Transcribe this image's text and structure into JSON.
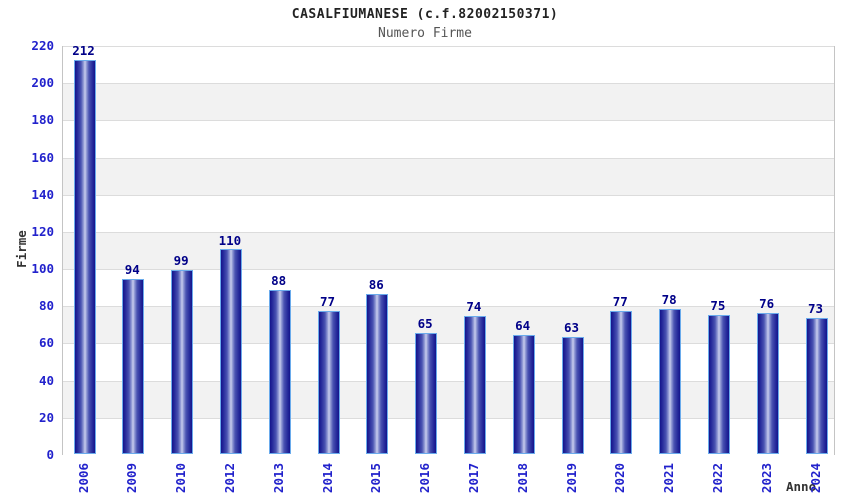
{
  "chart_data": {
    "type": "bar",
    "title": "CASALFIUMANESE (c.f.82002150371)",
    "subtitle": "Numero Firme",
    "xlabel": "Anno",
    "ylabel": "Firme",
    "categories": [
      "2006",
      "2009",
      "2010",
      "2012",
      "2013",
      "2014",
      "2015",
      "2016",
      "2017",
      "2018",
      "2019",
      "2020",
      "2021",
      "2022",
      "2023",
      "2024"
    ],
    "values": [
      212,
      94,
      99,
      110,
      88,
      77,
      86,
      65,
      74,
      64,
      63,
      77,
      78,
      75,
      76,
      73
    ],
    "ylim": [
      0,
      220
    ],
    "ytick_step": 20,
    "yticks": [
      0,
      20,
      40,
      60,
      80,
      100,
      120,
      140,
      160,
      180,
      200,
      220
    ],
    "grid": true,
    "legend": "none",
    "colors": {
      "title": "#222222",
      "subtitle": "#555555",
      "axis_label": "#333333",
      "tick_label": "#2222cc",
      "value_label": "#000088",
      "band_gray": "#f2f2f2",
      "band_white": "#ffffff",
      "gridline": "#dcdcdc",
      "plot_border": "#c4c4c4",
      "bar_edge": "#14148c",
      "bar_dark": "#262b9b",
      "bar_mid": "#4a53b2",
      "bar_light": "#9ba4d9",
      "bar_center": "#c9cdee",
      "bar_border": "#6aabec"
    }
  }
}
